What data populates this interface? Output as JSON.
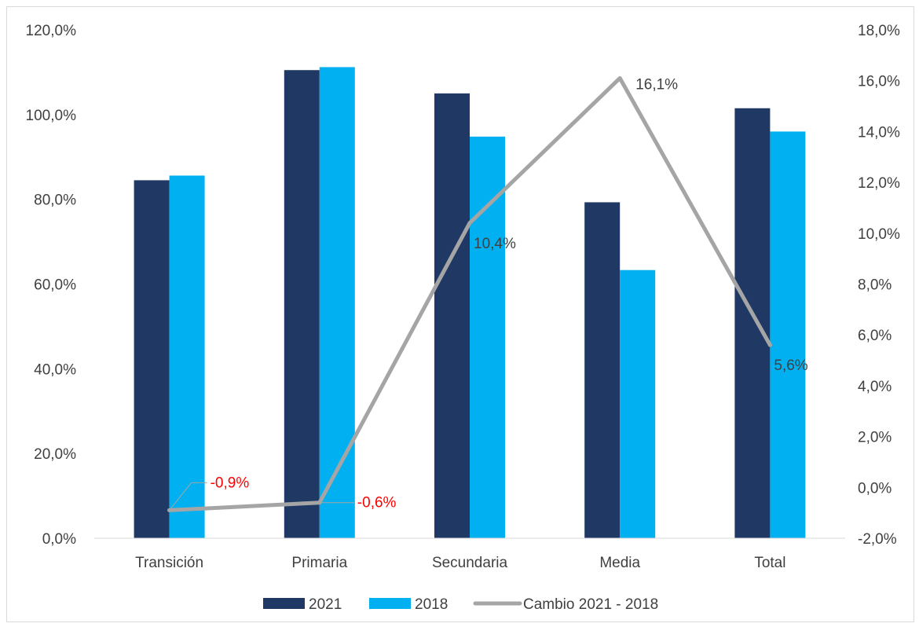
{
  "chart_data": {
    "type": "bar",
    "categories": [
      "Transición",
      "Primaria",
      "Secundaria",
      "Media",
      "Total"
    ],
    "series": [
      {
        "name": "2021",
        "type": "bar",
        "axis": "left",
        "color": "#203864",
        "values": [
          84.5,
          110.5,
          105.0,
          79.3,
          101.5
        ]
      },
      {
        "name": "2018",
        "type": "bar",
        "axis": "left",
        "color": "#00b0f0",
        "values": [
          85.6,
          111.2,
          94.8,
          63.3,
          96.0
        ]
      },
      {
        "name": "Cambio 2021 - 2018",
        "type": "line",
        "axis": "right",
        "color": "#a5a5a5",
        "values": [
          -0.9,
          -0.6,
          10.4,
          16.1,
          5.6
        ]
      }
    ],
    "line_labels": [
      "-0,9%",
      "-0,6%",
      "10,4%",
      "16,1%",
      "5,6%"
    ],
    "line_label_colors": [
      "#ff0000",
      "#ff0000",
      "#404040",
      "#404040",
      "#404040"
    ],
    "y_left": {
      "min": 0,
      "max": 120,
      "step": 20,
      "tick_labels": [
        "0,0%",
        "20,0%",
        "40,0%",
        "60,0%",
        "80,0%",
        "100,0%",
        "120,0%"
      ]
    },
    "y_right": {
      "min": -2,
      "max": 18,
      "step": 2,
      "tick_labels": [
        "-2,0%",
        "0,0%",
        "2,0%",
        "4,0%",
        "6,0%",
        "8,0%",
        "10,0%",
        "12,0%",
        "14,0%",
        "16,0%",
        "18,0%"
      ]
    },
    "grid": false,
    "legend_position": "bottom",
    "title": "",
    "xlabel": "",
    "ylabel": ""
  }
}
